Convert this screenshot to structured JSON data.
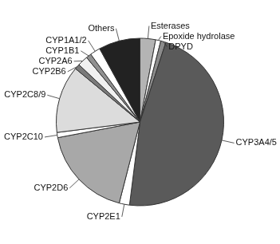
{
  "chart_data": {
    "type": "pie",
    "categories": [
      "Esterases",
      "Epoxide hydrolase",
      "DPYD",
      "CYP3A4/5",
      "CYP2E1",
      "CYP2D6",
      "CYP2C10",
      "CYP2C8/9",
      "CYP2B6",
      "CYP2A6",
      "CYP1B1",
      "CYP1A1/2",
      "Others"
    ],
    "values": [
      3,
      1,
      1,
      47,
      2,
      18,
      1,
      13,
      1,
      2,
      1,
      2,
      8
    ],
    "colors": [
      "#b4b4b4",
      "#ffffff",
      "#8c8c8c",
      "#5a5a5a",
      "#ffffff",
      "#a8a8a8",
      "#ffffff",
      "#dcdcdc",
      "#7a7a7a",
      "#f0f0f0",
      "#909090",
      "#ffffff",
      "#222222"
    ]
  }
}
